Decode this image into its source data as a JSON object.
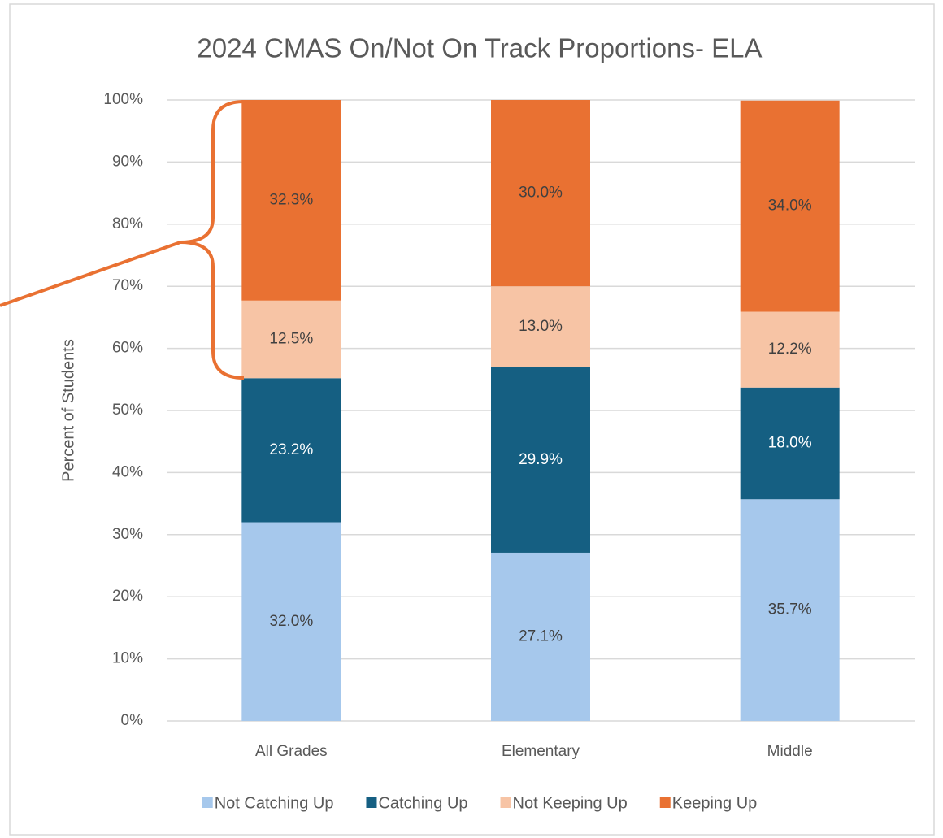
{
  "chart_data": {
    "type": "stacked_bar",
    "title": "2024 CMAS On/Not On Track Proportions- ELA",
    "y_label": "Percent of Students",
    "categories": [
      "All Grades",
      "Elementary",
      "Middle"
    ],
    "series": [
      {
        "name": "Not Catching Up",
        "color": "#a6c8ec",
        "values": [
          32.0,
          27.1,
          35.7
        ],
        "value_labels": [
          "32.0%",
          "27.1%",
          "35.7%"
        ]
      },
      {
        "name": "Catching Up",
        "color": "#155f82",
        "values": [
          23.2,
          29.9,
          18.0
        ],
        "value_labels": [
          "23.2%",
          "29.9%",
          "18.0%"
        ]
      },
      {
        "name": "Not Keeping Up",
        "color": "#f7c4a5",
        "values": [
          12.5,
          13.0,
          12.2
        ],
        "value_labels": [
          "12.5%",
          "13.0%",
          "12.2%"
        ]
      },
      {
        "name": "Keeping Up",
        "color": "#e97132",
        "values": [
          32.3,
          30.0,
          34.0
        ],
        "value_labels": [
          "32.3%",
          "30.0%",
          "34.0%"
        ]
      }
    ],
    "ylim": [
      0,
      100
    ],
    "yticks": [
      {
        "value": 0,
        "label": "0%"
      },
      {
        "value": 10,
        "label": "10%"
      },
      {
        "value": 20,
        "label": "20%"
      },
      {
        "value": 30,
        "label": "30%"
      },
      {
        "value": 40,
        "label": "40%"
      },
      {
        "value": 50,
        "label": "50%"
      },
      {
        "value": 60,
        "label": "60%"
      },
      {
        "value": 70,
        "label": "70%"
      },
      {
        "value": 80,
        "label": "80%"
      },
      {
        "value": 90,
        "label": "90%"
      },
      {
        "value": 100,
        "label": "100%"
      }
    ],
    "grid": true,
    "legend": "bottom"
  }
}
